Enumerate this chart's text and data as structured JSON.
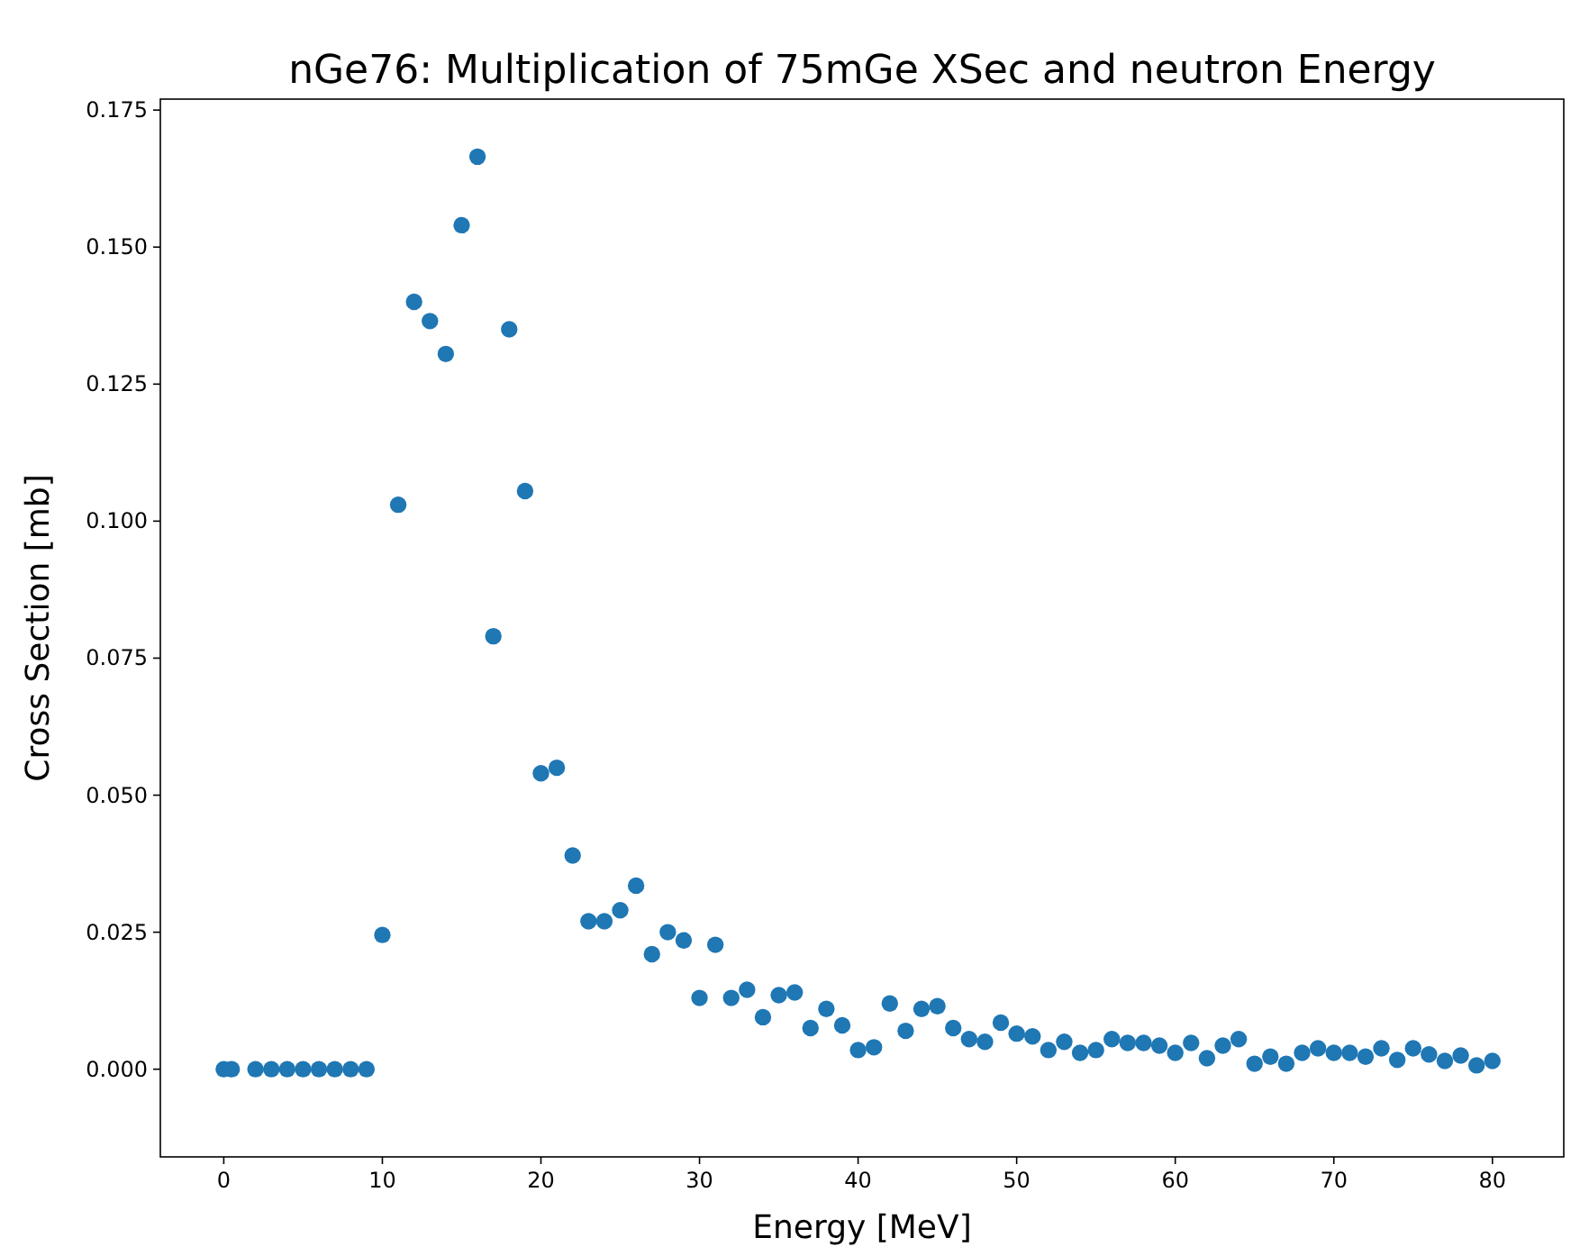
{
  "chart_data": {
    "type": "scatter",
    "title": "nGe76: Multiplication of 75mGe XSec and neutron Energy",
    "xlabel": "Energy [MeV]",
    "ylabel": "Cross Section [mb]",
    "x": [
      0,
      0.5,
      2,
      3,
      4,
      5,
      6,
      7,
      8,
      9,
      10,
      11,
      12,
      13,
      14,
      15,
      16,
      17,
      18,
      19,
      20,
      21,
      22,
      23,
      24,
      25,
      26,
      27,
      28,
      29,
      30,
      31,
      32,
      33,
      34,
      35,
      36,
      37,
      38,
      39,
      40,
      41,
      42,
      43,
      44,
      45,
      46,
      47,
      48,
      49,
      50,
      51,
      52,
      53,
      54,
      55,
      56,
      57,
      58,
      59,
      60,
      61,
      62,
      63,
      64,
      65,
      66,
      67,
      68,
      69,
      70,
      71,
      72,
      73,
      74,
      75,
      76,
      77,
      78,
      79,
      80
    ],
    "series": [
      {
        "color": "#1f77b4",
        "values": [
          0,
          0,
          0,
          0,
          0,
          0,
          0,
          0,
          0,
          0,
          0.0245,
          0.103,
          0.14,
          0.1365,
          0.1305,
          0.154,
          0.1665,
          0.079,
          0.135,
          0.1055,
          0.054,
          0.055,
          0.039,
          0.027,
          0.027,
          0.029,
          0.0335,
          0.021,
          0.025,
          0.0235,
          0.013,
          0.0227,
          0.013,
          0.0145,
          0.0095,
          0.0135,
          0.014,
          0.0075,
          0.011,
          0.008,
          0.0035,
          0.004,
          0.012,
          0.007,
          0.011,
          0.0115,
          0.0075,
          0.0055,
          0.005,
          0.0085,
          0.0065,
          0.006,
          0.0035,
          0.005,
          0.003,
          0.0035,
          0.0055,
          0.0048,
          0.0048,
          0.0043,
          0.003,
          0.0048,
          0.002,
          0.0043,
          0.0055,
          0.001,
          0.0023,
          0.001,
          0.003,
          0.0038,
          0.003,
          0.003,
          0.0023,
          0.0038,
          0.0017,
          0.0038,
          0.0027,
          0.0015,
          0.0025,
          0.0007,
          0.0015
        ]
      }
    ],
    "xlim": [
      -4,
      84.5
    ],
    "ylim": [
      -0.016,
      0.177
    ],
    "xticks": [
      0,
      10,
      20,
      30,
      40,
      50,
      60,
      70,
      80
    ],
    "yticks": [
      {
        "value": 0,
        "label": "0.000"
      },
      {
        "value": 0.025,
        "label": "0.025"
      },
      {
        "value": 0.05,
        "label": "0.050"
      },
      {
        "value": 0.075,
        "label": "0.075"
      },
      {
        "value": 0.1,
        "label": "0.100"
      },
      {
        "value": 0.125,
        "label": "0.125"
      },
      {
        "value": 0.15,
        "label": "0.150"
      },
      {
        "value": 0.175,
        "label": "0.175"
      }
    ],
    "marker": "circle",
    "grid": false
  }
}
